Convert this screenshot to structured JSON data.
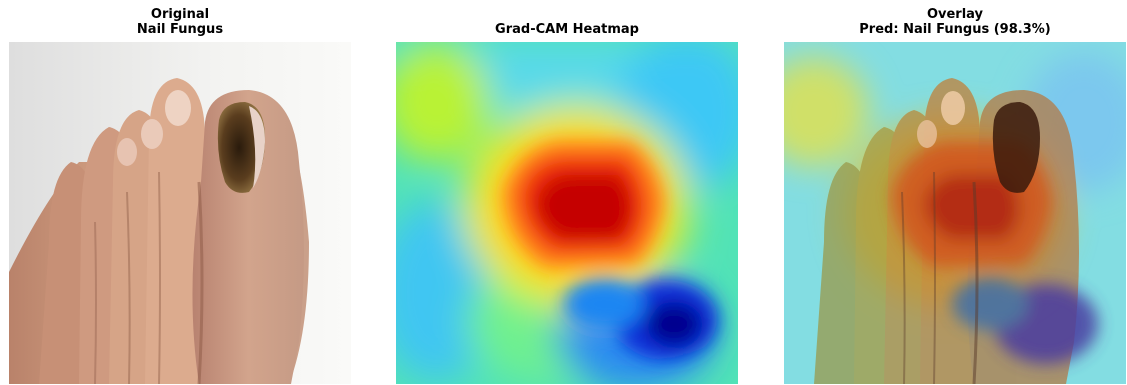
{
  "panels": [
    {
      "title_line1": "Original",
      "title_line2": "Nail Fungus",
      "image": "photograph of a foot with a discolored big toenail"
    },
    {
      "title_line1": "",
      "title_line2": "Grad-CAM Heatmap",
      "image": "jet colormap heatmap, red hotspot upper center, blue region lower right"
    },
    {
      "title_line1": "Overlay",
      "title_line2": "Pred: Nail Fungus (98.3%)",
      "image": "foot photograph blended with Grad-CAM heatmap"
    }
  ],
  "colors": {
    "skin": "#d9a98a",
    "skin_shadow": "#a8715a",
    "nail_fungus": "#3d2a14",
    "background": "#f4f4f2",
    "jet_red": "#cc0000",
    "jet_yellow": "#f2ef2a",
    "jet_cyan": "#3fd6f0",
    "jet_blue": "#0015c8"
  }
}
